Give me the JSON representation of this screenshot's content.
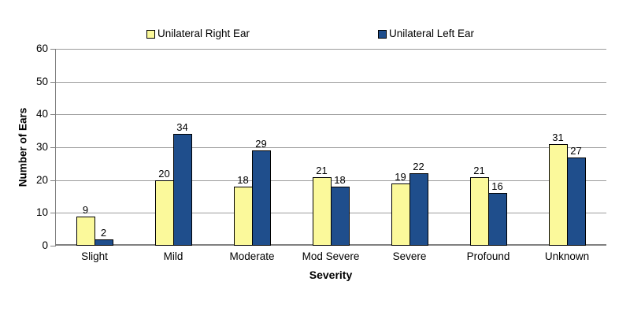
{
  "chart_data": {
    "type": "bar",
    "title": "",
    "categories": [
      "Slight",
      "Mild",
      "Moderate",
      "Mod Severe",
      "Severe",
      "Profound",
      "Unknown"
    ],
    "series": [
      {
        "name": "Unilateral Right Ear",
        "color": "#FBF99B",
        "values": [
          9,
          20,
          18,
          21,
          19,
          21,
          31
        ]
      },
      {
        "name": "Unilateral Left Ear",
        "color": "#1F4E8C",
        "values": [
          2,
          34,
          29,
          18,
          22,
          16,
          27
        ]
      }
    ],
    "xlabel": "Severity",
    "ylabel": "Number of Ears",
    "ylim": [
      0,
      60
    ],
    "ytick_step": 10,
    "yticks": [
      "0",
      "10",
      "20",
      "30",
      "40",
      "50",
      "60"
    ],
    "grid": true,
    "legend_position": "top",
    "bar_outline_color": "#000000",
    "gridline_color": "#9C9C9C",
    "axis_color": "#808080",
    "background_color": "#FFFFFF"
  }
}
